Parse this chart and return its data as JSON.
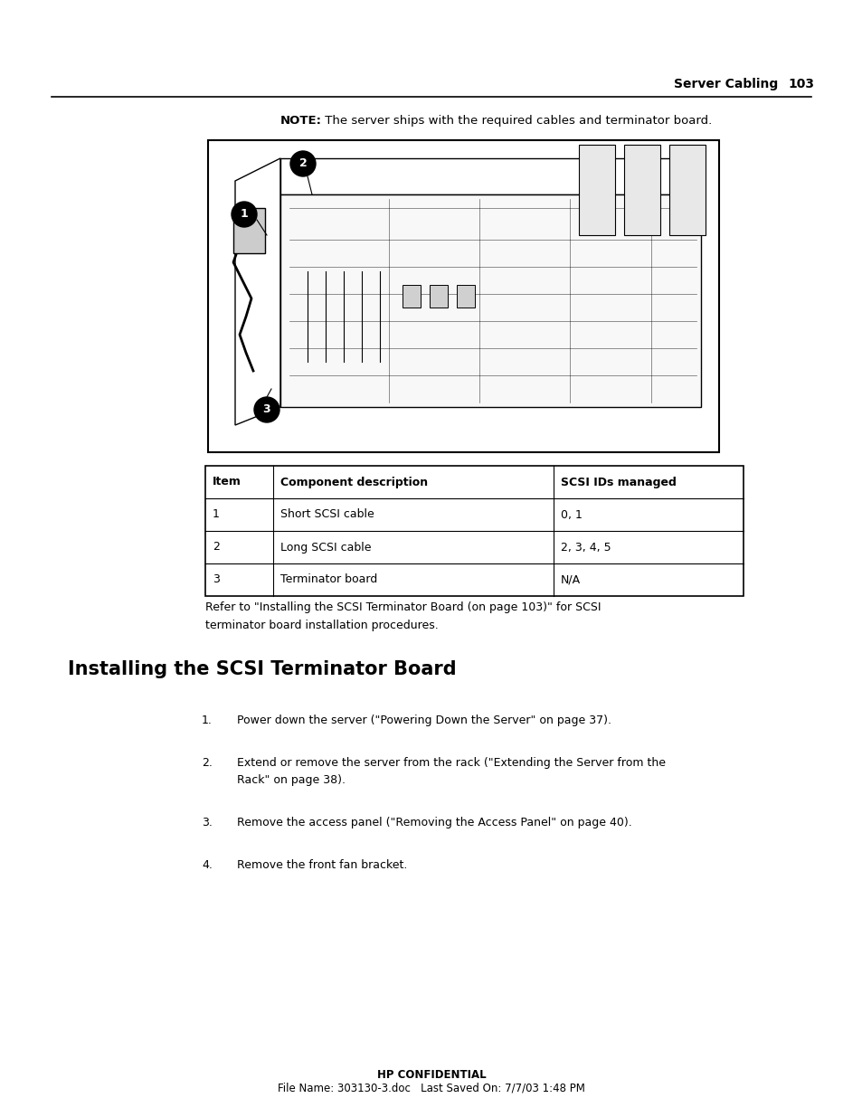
{
  "page_header_text": "Server Cabling",
  "page_number": "103",
  "note_bold": "NOTE:",
  "note_text": "  The server ships with the required cables and terminator board.",
  "table_headers": [
    "Item",
    "Component description",
    "SCSI IDs managed"
  ],
  "table_rows": [
    [
      "1",
      "Short SCSI cable",
      "0, 1"
    ],
    [
      "2",
      "Long SCSI cable",
      "2, 3, 4, 5"
    ],
    [
      "3",
      "Terminator board",
      "N/A"
    ]
  ],
  "refer_line1": "Refer to \"Installing the SCSI Terminator Board (on page 103)\" for SCSI",
  "refer_line2": "terminator board installation procedures.",
  "section_title": "Installing the SCSI Terminator Board",
  "steps": [
    [
      "Power down the server (\"Powering Down the Server\" on page 37)."
    ],
    [
      "Extend or remove the server from the rack (\"Extending the Server from the",
      "Rack\" on page 38)."
    ],
    [
      "Remove the access panel (\"Removing the Access Panel\" on page 40)."
    ],
    [
      "Remove the front fan bracket."
    ]
  ],
  "footer_bold": "HP CONFIDENTIAL",
  "footer_text": "File Name: 303130-3.doc   Last Saved On: 7/7/03 1:48 PM",
  "bg_color": "#ffffff",
  "text_color": "#000000"
}
